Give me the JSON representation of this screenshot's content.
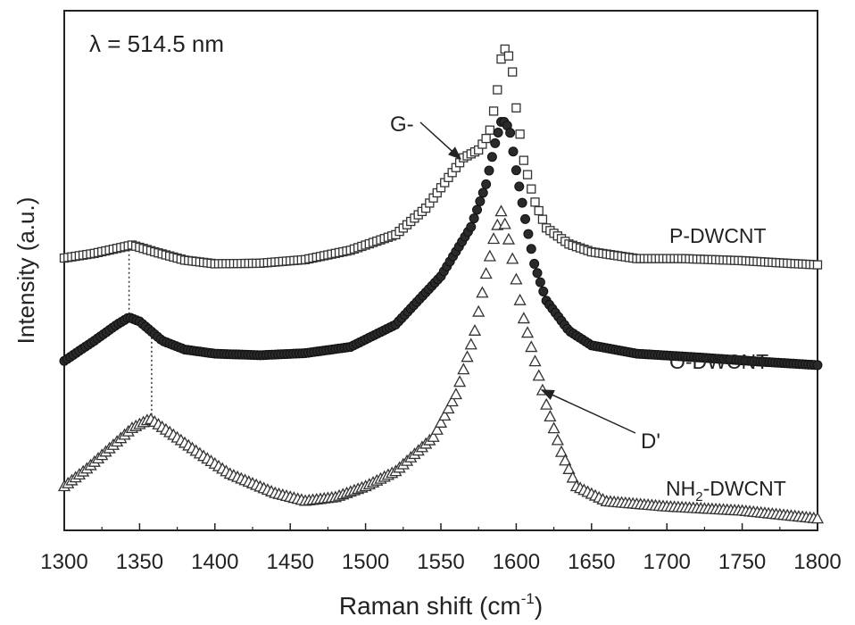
{
  "chart_data": {
    "type": "scatter",
    "annotation_lambda": "λ = 514.5 nm",
    "xlabel": "Raman shift (cm",
    "xlabel_sup": "-1",
    "xlabel_close": ")",
    "ylabel": "Intensity (a.u.)",
    "xlim": [
      1300,
      1800
    ],
    "ylim": [
      0,
      100
    ],
    "xticks": [
      "1300",
      "1350",
      "1400",
      "1450",
      "1500",
      "1550",
      "1600",
      "1650",
      "1700",
      "1750",
      "1800"
    ],
    "y_tick_labels_shown": false,
    "grid": false,
    "series": [
      {
        "name": "P-DWCNT",
        "marker": "square",
        "points": [
          [
            1300,
            52.4
          ],
          [
            1320,
            53.3
          ],
          [
            1345,
            54.9
          ],
          [
            1360,
            53.6
          ],
          [
            1380,
            52.0
          ],
          [
            1400,
            51.3
          ],
          [
            1430,
            51.4
          ],
          [
            1460,
            52.1
          ],
          [
            1490,
            53.9
          ],
          [
            1520,
            56.9
          ],
          [
            1540,
            62.0
          ],
          [
            1555,
            67.9
          ],
          [
            1565,
            71.7
          ],
          [
            1575,
            73.2
          ],
          [
            1582,
            76.3
          ],
          [
            1587,
            83.6
          ],
          [
            1590,
            90.7
          ],
          [
            1593,
            93.0
          ],
          [
            1597,
            89.6
          ],
          [
            1600,
            81.3
          ],
          [
            1605,
            71.2
          ],
          [
            1612,
            63.5
          ],
          [
            1620,
            58.2
          ],
          [
            1635,
            55.1
          ],
          [
            1650,
            53.6
          ],
          [
            1680,
            52.3
          ],
          [
            1710,
            52.3
          ],
          [
            1750,
            51.9
          ],
          [
            1780,
            51.4
          ],
          [
            1800,
            51.1
          ]
        ]
      },
      {
        "name": "O-DWCNT",
        "marker": "circle",
        "points": [
          [
            1300,
            32.6
          ],
          [
            1320,
            36.5
          ],
          [
            1335,
            39.6
          ],
          [
            1343,
            41.0
          ],
          [
            1350,
            40.2
          ],
          [
            1365,
            36.5
          ],
          [
            1380,
            34.8
          ],
          [
            1400,
            34.0
          ],
          [
            1430,
            33.7
          ],
          [
            1460,
            34.1
          ],
          [
            1490,
            35.3
          ],
          [
            1520,
            39.6
          ],
          [
            1550,
            48.9
          ],
          [
            1570,
            58.4
          ],
          [
            1580,
            66.6
          ],
          [
            1586,
            74.5
          ],
          [
            1590,
            78.6
          ],
          [
            1593,
            78.6
          ],
          [
            1596,
            76.5
          ],
          [
            1600,
            69.3
          ],
          [
            1606,
            59.9
          ],
          [
            1612,
            51.3
          ],
          [
            1620,
            44.2
          ],
          [
            1635,
            38.4
          ],
          [
            1650,
            35.6
          ],
          [
            1680,
            34.0
          ],
          [
            1720,
            33.3
          ],
          [
            1760,
            32.5
          ],
          [
            1800,
            31.8
          ]
        ]
      },
      {
        "name": "NH2-DWCNT",
        "marker": "triangle",
        "points": [
          [
            1300,
            8.5
          ],
          [
            1315,
            11.9
          ],
          [
            1330,
            15.8
          ],
          [
            1345,
            19.7
          ],
          [
            1357,
            21.5
          ],
          [
            1370,
            18.9
          ],
          [
            1390,
            14.8
          ],
          [
            1410,
            10.9
          ],
          [
            1440,
            7.2
          ],
          [
            1460,
            5.7
          ],
          [
            1480,
            6.4
          ],
          [
            1500,
            8.5
          ],
          [
            1520,
            11.4
          ],
          [
            1545,
            18.0
          ],
          [
            1560,
            26.2
          ],
          [
            1572,
            37.7
          ],
          [
            1580,
            49.4
          ],
          [
            1585,
            56.1
          ],
          [
            1590,
            61.4
          ],
          [
            1594,
            57.5
          ],
          [
            1598,
            51.5
          ],
          [
            1604,
            41.9
          ],
          [
            1612,
            33.1
          ],
          [
            1620,
            24.2
          ],
          [
            1630,
            15.1
          ],
          [
            1640,
            8.5
          ],
          [
            1660,
            5.6
          ],
          [
            1700,
            4.6
          ],
          [
            1750,
            3.8
          ],
          [
            1800,
            2.3
          ]
        ]
      }
    ],
    "series_labels": {
      "p": "P-DWCNT",
      "o": "O-DWCNT",
      "nh_prefix": "NH",
      "nh_sub": "2",
      "nh_suffix": "-DWCNT"
    },
    "annotations": {
      "g_minus": "G-",
      "d_prime": "D'"
    },
    "colors": {
      "frame": "#222222",
      "marker_stroke": "#333333",
      "o_fill": "#2a2a2a"
    }
  }
}
